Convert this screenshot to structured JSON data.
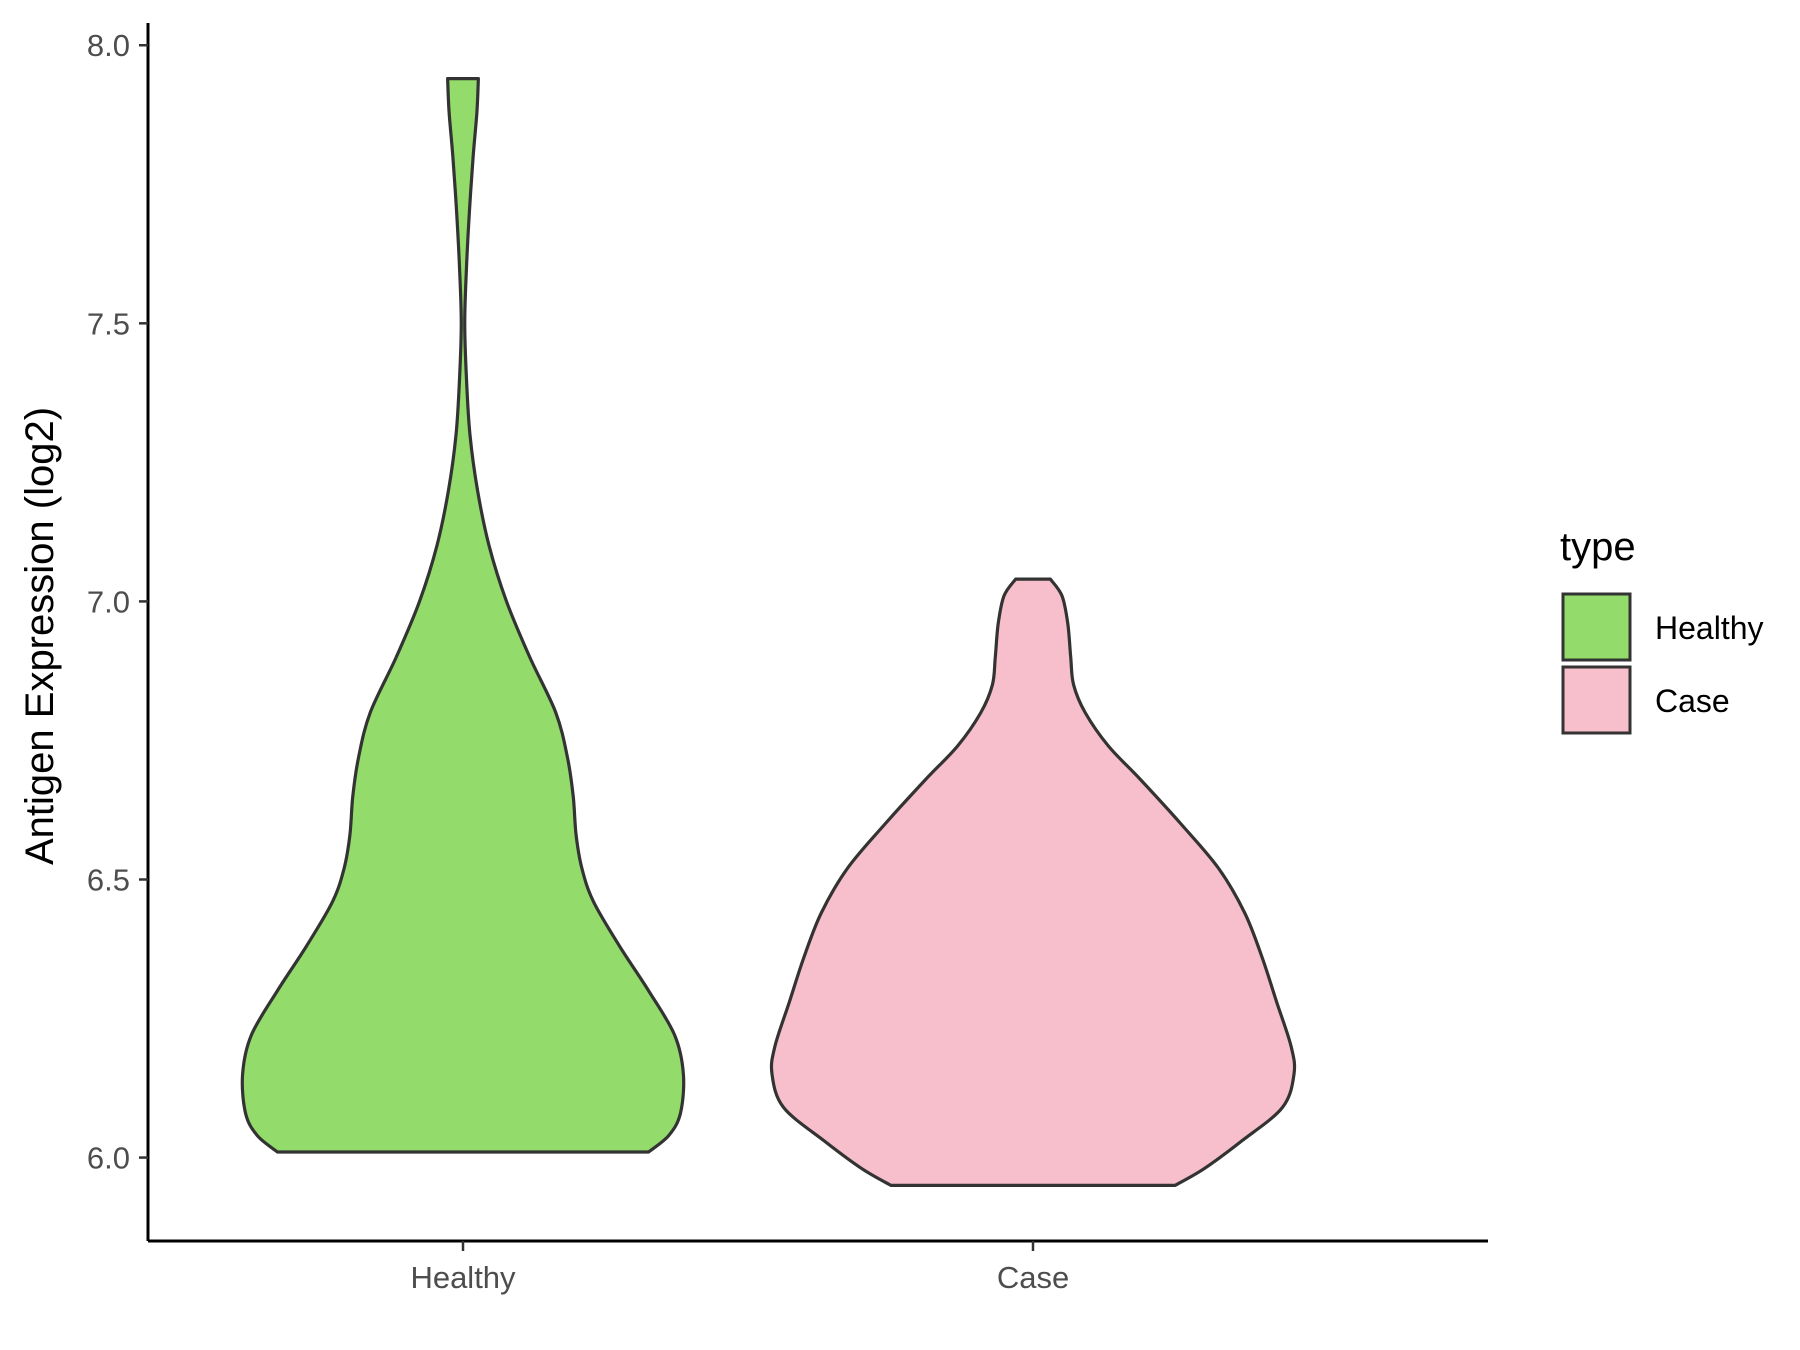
{
  "chart_data": {
    "type": "violin",
    "title": "",
    "xlabel": "",
    "ylabel": "Antigen Expression (log2)",
    "ylim": [
      5.85,
      8.04
    ],
    "yticks": [
      6.0,
      6.5,
      7.0,
      7.5,
      8.0
    ],
    "ytick_labels": [
      "6.0",
      "6.5",
      "7.0",
      "7.5",
      "8.0"
    ],
    "categories": [
      "Healthy",
      "Case"
    ],
    "grid": false,
    "legend": {
      "title": "type",
      "position": "right",
      "entries": [
        {
          "label": "Healthy",
          "color": "#93dc6b"
        },
        {
          "label": "Case",
          "color": "#f7bfcb"
        }
      ]
    },
    "series": [
      {
        "name": "Healthy",
        "color": "#93dc6b",
        "min": 6.01,
        "max": 7.94,
        "density_profile": [
          {
            "y": 6.01,
            "half_width": 0.64
          },
          {
            "y": 6.04,
            "half_width": 0.71
          },
          {
            "y": 6.08,
            "half_width": 0.75
          },
          {
            "y": 6.15,
            "half_width": 0.76
          },
          {
            "y": 6.22,
            "half_width": 0.73
          },
          {
            "y": 6.3,
            "half_width": 0.64
          },
          {
            "y": 6.38,
            "half_width": 0.54
          },
          {
            "y": 6.46,
            "half_width": 0.45
          },
          {
            "y": 6.52,
            "half_width": 0.41
          },
          {
            "y": 6.58,
            "half_width": 0.39
          },
          {
            "y": 6.65,
            "half_width": 0.38
          },
          {
            "y": 6.72,
            "half_width": 0.36
          },
          {
            "y": 6.8,
            "half_width": 0.32
          },
          {
            "y": 6.9,
            "half_width": 0.23
          },
          {
            "y": 7.0,
            "half_width": 0.15
          },
          {
            "y": 7.1,
            "half_width": 0.09
          },
          {
            "y": 7.2,
            "half_width": 0.05
          },
          {
            "y": 7.3,
            "half_width": 0.024
          },
          {
            "y": 7.4,
            "half_width": 0.012
          },
          {
            "y": 7.5,
            "half_width": 0.006
          },
          {
            "y": 7.6,
            "half_width": 0.012
          },
          {
            "y": 7.7,
            "half_width": 0.022
          },
          {
            "y": 7.8,
            "half_width": 0.035
          },
          {
            "y": 7.88,
            "half_width": 0.048
          },
          {
            "y": 7.94,
            "half_width": 0.053
          }
        ]
      },
      {
        "name": "Case",
        "color": "#f7bfcb",
        "min": 5.95,
        "max": 7.04,
        "density_profile": [
          {
            "y": 5.95,
            "half_width": 0.49
          },
          {
            "y": 5.98,
            "half_width": 0.59
          },
          {
            "y": 6.03,
            "half_width": 0.72
          },
          {
            "y": 6.09,
            "half_width": 0.86
          },
          {
            "y": 6.15,
            "half_width": 0.9
          },
          {
            "y": 6.2,
            "half_width": 0.89
          },
          {
            "y": 6.28,
            "half_width": 0.84
          },
          {
            "y": 6.36,
            "half_width": 0.79
          },
          {
            "y": 6.44,
            "half_width": 0.73
          },
          {
            "y": 6.52,
            "half_width": 0.64
          },
          {
            "y": 6.6,
            "half_width": 0.51
          },
          {
            "y": 6.68,
            "half_width": 0.37
          },
          {
            "y": 6.74,
            "half_width": 0.26
          },
          {
            "y": 6.8,
            "half_width": 0.18
          },
          {
            "y": 6.85,
            "half_width": 0.14
          },
          {
            "y": 6.9,
            "half_width": 0.13
          },
          {
            "y": 6.96,
            "half_width": 0.12
          },
          {
            "y": 7.01,
            "half_width": 0.1
          },
          {
            "y": 7.04,
            "half_width": 0.06
          }
        ]
      }
    ]
  }
}
